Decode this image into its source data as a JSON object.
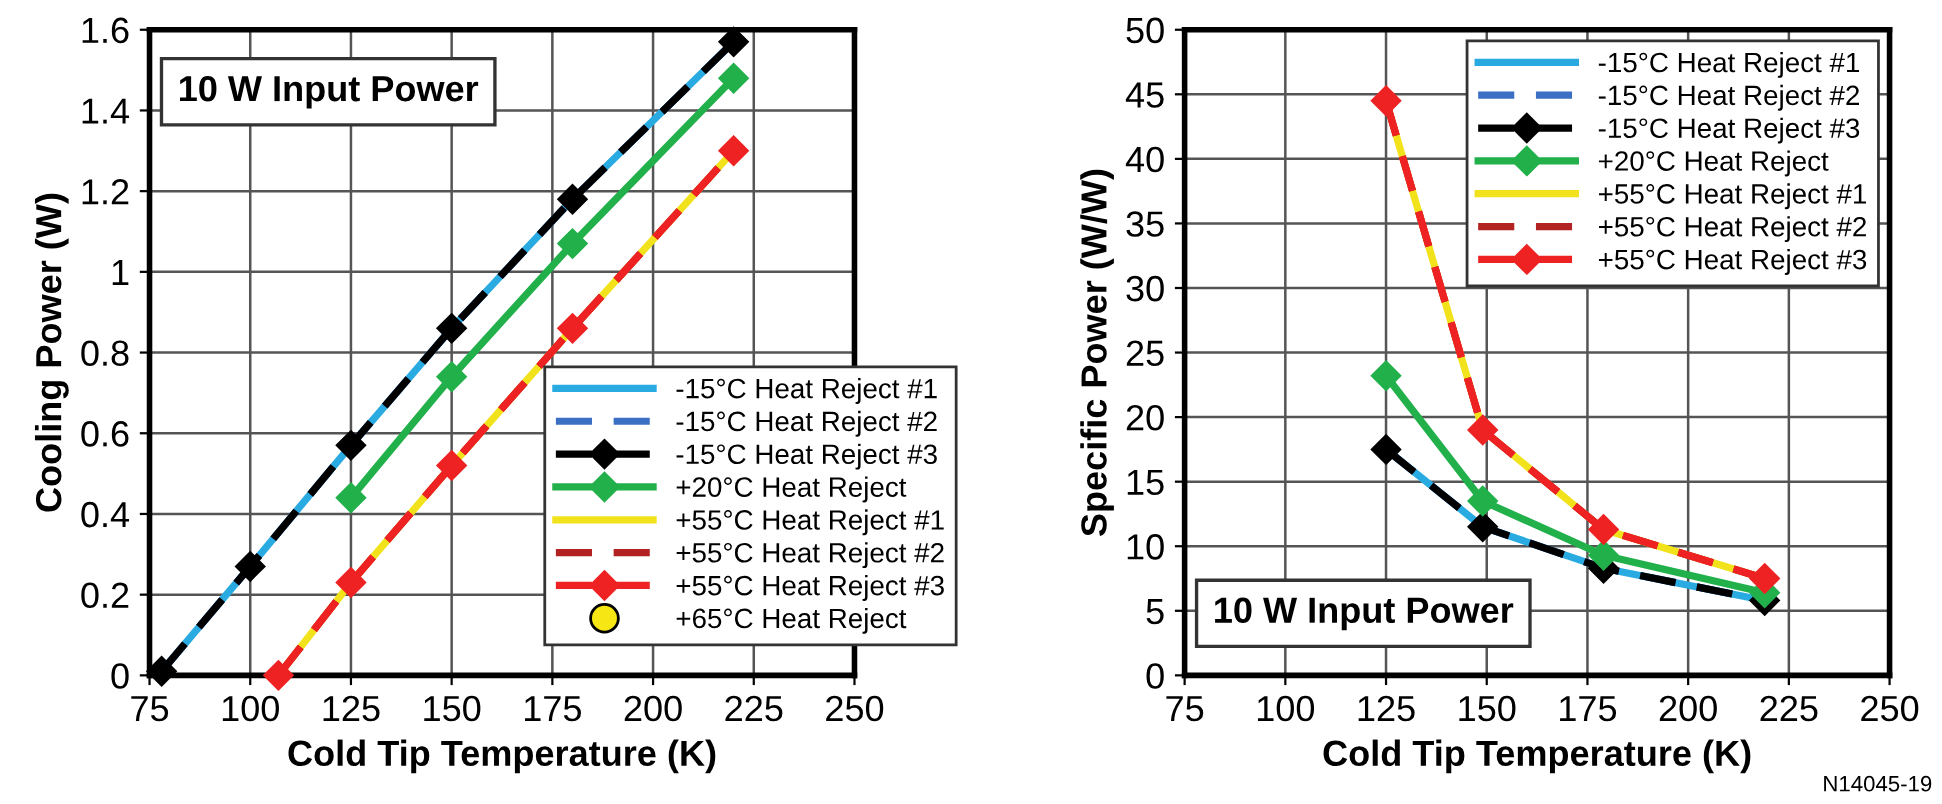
{
  "chart_data": [
    {
      "type": "line",
      "xlabel": "Cold Tip Temperature (K)",
      "ylabel": "Cooling Power (W)",
      "xlim": [
        75,
        250
      ],
      "xticks": [
        75,
        100,
        125,
        150,
        175,
        200,
        225,
        250
      ],
      "ylim": [
        0,
        1.6
      ],
      "yticks": [
        0,
        0.2,
        0.4,
        0.6,
        0.8,
        1,
        1.2,
        1.4,
        1.6
      ],
      "grid": true,
      "legend": "bottom right",
      "annotations": [
        "10 W Input Power"
      ],
      "series": [
        {
          "name": "-15°C Heat Reject #1",
          "color": "#29abe2",
          "line_style": "solid",
          "marker": "none",
          "x": [
            78,
            100,
            125,
            150,
            180,
            220
          ],
          "values": [
            0.01,
            0.27,
            0.57,
            0.86,
            1.18,
            1.57
          ]
        },
        {
          "name": "-15°C Heat Reject #2",
          "color": "#3a6fc4",
          "line_style": "dashed",
          "marker": "none",
          "x": [
            78,
            100,
            125,
            150,
            180,
            220
          ],
          "values": [
            0.01,
            0.27,
            0.57,
            0.86,
            1.18,
            1.57
          ]
        },
        {
          "name": "-15°C Heat Reject #3",
          "color": "#000000",
          "line_style": "dashed",
          "marker": "diamond",
          "x": [
            78,
            100,
            125,
            150,
            180,
            220
          ],
          "values": [
            0.01,
            0.27,
            0.57,
            0.86,
            1.18,
            1.57
          ]
        },
        {
          "name": "+20°C Heat Reject",
          "color": "#22b04b",
          "line_style": "solid",
          "marker": "diamond",
          "x": [
            125,
            150,
            180,
            220
          ],
          "values": [
            0.44,
            0.74,
            1.07,
            1.48
          ]
        },
        {
          "name": "+55°C Heat Reject #1",
          "color": "#f2e21c",
          "line_style": "solid",
          "marker": "none",
          "x": [
            107,
            125,
            150,
            180,
            220
          ],
          "values": [
            0,
            0.23,
            0.52,
            0.86,
            1.3
          ]
        },
        {
          "name": "+55°C Heat Reject #2",
          "color": "#b22222",
          "line_style": "dashed",
          "marker": "none",
          "x": [
            107,
            125,
            150,
            180,
            220
          ],
          "values": [
            0,
            0.23,
            0.52,
            0.86,
            1.3
          ]
        },
        {
          "name": "+55°C Heat Reject #3",
          "color": "#ee2222",
          "line_style": "dashed",
          "marker": "diamond",
          "x": [
            107,
            125,
            150,
            180,
            220
          ],
          "values": [
            0,
            0.23,
            0.52,
            0.86,
            1.3
          ]
        },
        {
          "name": "+65°C Heat Reject",
          "type": "scatter",
          "color": "#f5e614",
          "marker": "circle"
        }
      ]
    },
    {
      "type": "line",
      "xlabel": "Cold Tip Temperature (K)",
      "ylabel": "Specific Power (W/W)",
      "xlim": [
        75,
        250
      ],
      "xticks": [
        75,
        100,
        125,
        150,
        175,
        200,
        225,
        250
      ],
      "ylim": [
        0,
        50
      ],
      "yticks": [
        0,
        5,
        10,
        15,
        20,
        25,
        30,
        35,
        40,
        45,
        50
      ],
      "grid": true,
      "legend": "top right",
      "annotations": [
        "10 W Input Power",
        "N14045-19"
      ],
      "series": [
        {
          "name": "-15°C Heat Reject #1",
          "color": "#29abe2",
          "line_style": "solid",
          "marker": "none",
          "x": [
            125,
            149,
            179,
            219
          ],
          "values": [
            17.5,
            11.5,
            8.3,
            5.8
          ]
        },
        {
          "name": "-15°C Heat Reject #2",
          "color": "#3a6fc4",
          "line_style": "dashed",
          "marker": "none",
          "x": [
            125,
            149,
            179,
            219
          ],
          "values": [
            17.5,
            11.5,
            8.3,
            5.8
          ]
        },
        {
          "name": "-15°C Heat Reject #3",
          "color": "#000000",
          "line_style": "dashed",
          "marker": "diamond",
          "x": [
            125,
            149,
            179,
            219
          ],
          "values": [
            17.5,
            11.5,
            8.3,
            5.8
          ]
        },
        {
          "name": "+20°C Heat Reject",
          "color": "#22b04b",
          "line_style": "solid",
          "marker": "diamond",
          "x": [
            125,
            149,
            179,
            219
          ],
          "values": [
            23.2,
            13.5,
            9.3,
            6.4
          ]
        },
        {
          "name": "+55°C Heat Reject #1",
          "color": "#f2e21c",
          "line_style": "solid",
          "marker": "none",
          "x": [
            125,
            149,
            179,
            219
          ],
          "values": [
            44.5,
            19,
            11.3,
            7.5
          ]
        },
        {
          "name": "+55°C Heat Reject #2",
          "color": "#b22222",
          "line_style": "dashed",
          "marker": "none",
          "x": [
            125,
            149,
            179,
            219
          ],
          "values": [
            44.5,
            19,
            11.3,
            7.5
          ]
        },
        {
          "name": "+55°C Heat Reject #3",
          "color": "#ee2222",
          "line_style": "dashed",
          "marker": "diamond",
          "x": [
            125,
            149,
            179,
            219
          ],
          "values": [
            44.5,
            19,
            11.3,
            7.5
          ]
        }
      ]
    }
  ]
}
